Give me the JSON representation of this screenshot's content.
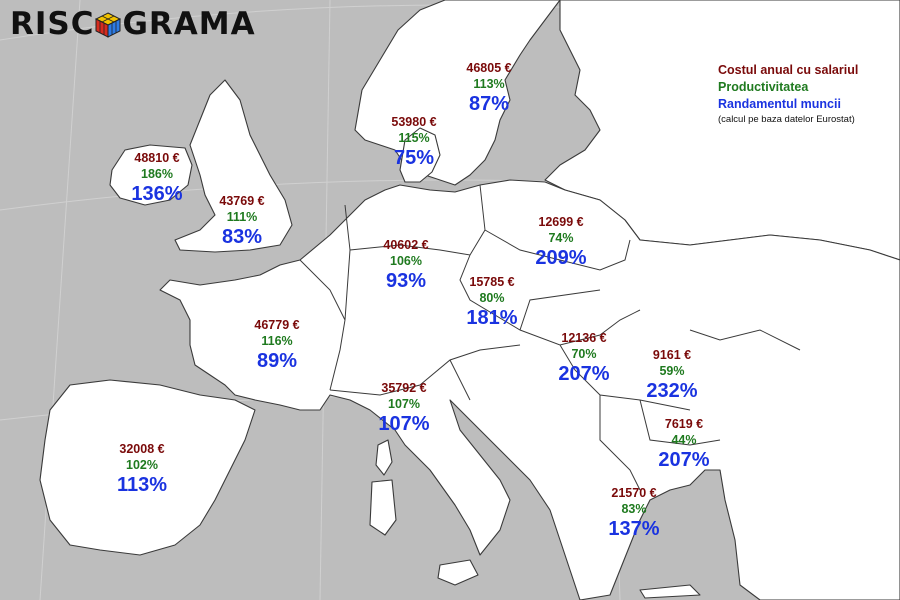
{
  "logo": {
    "text_left": "RISC",
    "text_right": "GRAMA"
  },
  "legend": {
    "cost_label": "Costul anual cu salariul",
    "productivity_label": "Productivitatea",
    "yield_label": "Randamentul muncii",
    "note": "(calcul pe baza datelor Eurostat)"
  },
  "colors": {
    "cost": "#7a0a0a",
    "productivity": "#1f7a1f",
    "yield": "#1a33e0"
  },
  "regions": [
    {
      "cost": "48810 €",
      "productivity": "186%",
      "yield": "136%"
    },
    {
      "cost": "43769 €",
      "productivity": "111%",
      "yield": "83%"
    },
    {
      "cost": "46805 €",
      "productivity": "113%",
      "yield": "87%"
    },
    {
      "cost": "53980 €",
      "productivity": "115%",
      "yield": "75%"
    },
    {
      "cost": "40602 €",
      "productivity": "106%",
      "yield": "93%"
    },
    {
      "cost": "12699 €",
      "productivity": "74%",
      "yield": "209%"
    },
    {
      "cost": "15785 €",
      "productivity": "80%",
      "yield": "181%"
    },
    {
      "cost": "46779 €",
      "productivity": "116%",
      "yield": "89%"
    },
    {
      "cost": "12136 €",
      "productivity": "70%",
      "yield": "207%"
    },
    {
      "cost": "9161 €",
      "productivity": "59%",
      "yield": "232%"
    },
    {
      "cost": "35792 €",
      "productivity": "107%",
      "yield": "107%"
    },
    {
      "cost": "7619 €",
      "productivity": "44%",
      "yield": "207%"
    },
    {
      "cost": "32008 €",
      "productivity": "102%",
      "yield": "113%"
    },
    {
      "cost": "21570 €",
      "productivity": "83%",
      "yield": "137%"
    }
  ]
}
